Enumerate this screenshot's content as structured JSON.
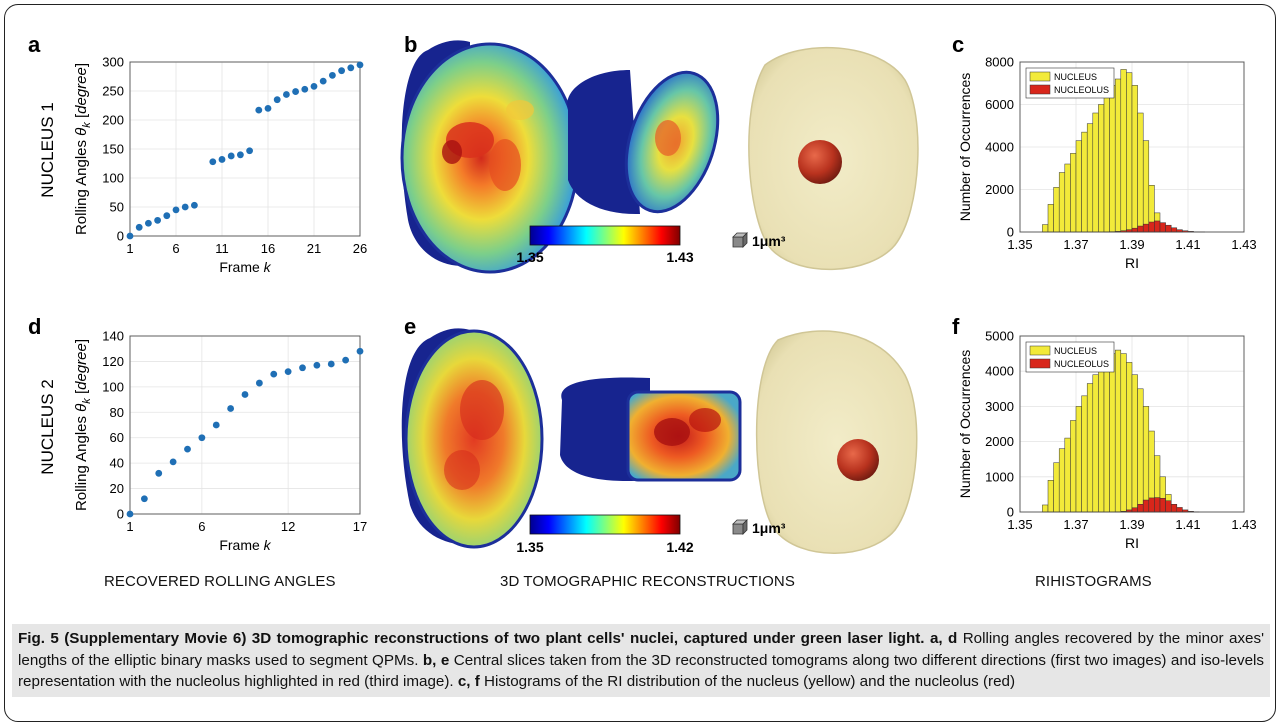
{
  "colors": {
    "nucleus_bar": "#f2ea3a",
    "nucleolus_bar": "#d8261b",
    "points": "#1f6fb5",
    "caption_bg": "#e6e6e6"
  },
  "panels": {
    "a": {
      "letter": "a",
      "row_label": "NUCLEUS 1"
    },
    "b": {
      "letter": "b",
      "cbar_min": "1.35",
      "cbar_max": "1.43",
      "scale_label": "1μm³"
    },
    "c": {
      "letter": "c"
    },
    "d": {
      "letter": "d",
      "row_label": "NUCLEUS 2"
    },
    "e": {
      "letter": "e",
      "cbar_min": "1.35",
      "cbar_max": "1.42",
      "scale_label": "1μm³"
    },
    "f": {
      "letter": "f"
    }
  },
  "section_labels": {
    "left": "RECOVERED ROLLING ANGLES",
    "middle": "3D TOMOGRAPHIC RECONSTRUCTIONS",
    "right": "RIHISTOGRAMS"
  },
  "caption": {
    "fig_label": "Fig. 5 (Supplementary Movie 6) 3D tomographic reconstructions of two plant cells' nuclei, captured under green laser light.",
    "ad_ref": "a, d",
    "ad_text": "Rolling angles recovered by the minor axes' lengths of the elliptic binary masks used to segment QPMs.",
    "be_ref": "b, e",
    "be_text": "Central slices taken from the 3D reconstructed tomograms along two different directions (first two images) and iso-levels representation with the nucleolus highlighted in red (third image).",
    "cf_ref": "c, f",
    "cf_text": "Histograms of the RI distribution of the nucleus (yellow) and the nucleolus (red)"
  },
  "chart_data": [
    {
      "id": "a",
      "type": "scatter",
      "xlabel_main": "Frame ",
      "xlabel_var": "k",
      "ylabel_main": "Rolling Angles ",
      "ylabel_sym": "θ",
      "ylabel_sub": "k",
      "ylabel_unit": "degree",
      "xlim": [
        1,
        26
      ],
      "ylim": [
        0,
        300
      ],
      "xticks": [
        1,
        6,
        11,
        16,
        21,
        26
      ],
      "yticks": [
        0,
        50,
        100,
        150,
        200,
        250,
        300
      ],
      "grid": true,
      "x": [
        1,
        2,
        3,
        4,
        5,
        6,
        7,
        8,
        10,
        11,
        12,
        13,
        14,
        15,
        16,
        17,
        18,
        19,
        20,
        21,
        22,
        23,
        24,
        25,
        26
      ],
      "y": [
        0,
        15,
        22,
        27,
        35,
        45,
        50,
        53,
        128,
        132,
        138,
        140,
        147,
        217,
        220,
        235,
        244,
        249,
        253,
        258,
        267,
        277,
        285,
        290,
        295
      ]
    },
    {
      "id": "d",
      "type": "scatter",
      "xlabel_main": "Frame ",
      "xlabel_var": "k",
      "ylabel_main": "Rolling Angles ",
      "ylabel_sym": "θ",
      "ylabel_sub": "k",
      "ylabel_unit": "degree",
      "xlim": [
        1,
        17
      ],
      "ylim": [
        0,
        140
      ],
      "xticks": [
        1,
        6,
        12,
        17
      ],
      "yticks": [
        0,
        20,
        40,
        60,
        80,
        100,
        120,
        140
      ],
      "grid": true,
      "x": [
        1,
        2,
        3,
        4,
        5,
        6,
        7,
        8,
        9,
        10,
        11,
        12,
        13,
        14,
        15,
        16,
        17
      ],
      "y": [
        0,
        12,
        32,
        41,
        51,
        60,
        70,
        83,
        94,
        103,
        110,
        112,
        115,
        117,
        118,
        121,
        128
      ]
    },
    {
      "id": "c",
      "type": "bar",
      "xlabel": "RI",
      "ylabel": "Number of Occurrences",
      "xlim": [
        1.35,
        1.43
      ],
      "ylim": [
        0,
        8000
      ],
      "xticks": [
        "1.35",
        "1.37",
        "1.39",
        "1.41",
        "1.43"
      ],
      "yticks": [
        0,
        2000,
        4000,
        6000,
        8000
      ],
      "legend": "top-left",
      "bin_start": 1.356,
      "bin_width": 0.002,
      "series": [
        {
          "name": "NUCLEUS",
          "values": [
            0,
            350,
            1300,
            2100,
            2800,
            3200,
            3700,
            4300,
            4700,
            5100,
            5600,
            6000,
            6500,
            6900,
            7200,
            7650,
            7500,
            6900,
            5600,
            4300,
            2200,
            900,
            300,
            100,
            30,
            10,
            0,
            0,
            0,
            0,
            0,
            0,
            0,
            0,
            0,
            0,
            0,
            0
          ]
        },
        {
          "name": "NUCLEOLUS",
          "values": [
            0,
            0,
            0,
            0,
            0,
            0,
            0,
            0,
            0,
            0,
            0,
            0,
            5,
            15,
            30,
            60,
            110,
            180,
            280,
            370,
            470,
            520,
            440,
            320,
            200,
            110,
            60,
            30,
            10,
            5,
            0,
            0,
            0,
            0,
            0,
            0,
            0,
            0
          ]
        }
      ]
    },
    {
      "id": "f",
      "type": "bar",
      "xlabel": "RI",
      "ylabel": "Number of Occurrences",
      "xlim": [
        1.35,
        1.43
      ],
      "ylim": [
        0,
        5000
      ],
      "xticks": [
        "1.35",
        "1.37",
        "1.39",
        "1.41",
        "1.43"
      ],
      "yticks": [
        0,
        1000,
        2000,
        3000,
        4000,
        5000
      ],
      "legend": "top-left",
      "bin_start": 1.356,
      "bin_width": 0.002,
      "series": [
        {
          "name": "NUCLEUS",
          "values": [
            0,
            200,
            900,
            1400,
            1800,
            2100,
            2600,
            3000,
            3300,
            3650,
            3900,
            4150,
            4350,
            4500,
            4600,
            4500,
            4250,
            3900,
            3500,
            3000,
            2300,
            1600,
            1000,
            500,
            200,
            60,
            20,
            0,
            0,
            0,
            0,
            0,
            0,
            0,
            0,
            0,
            0,
            0
          ]
        },
        {
          "name": "NUCLEOLUS",
          "values": [
            0,
            0,
            0,
            0,
            0,
            0,
            0,
            0,
            0,
            0,
            0,
            0,
            0,
            0,
            5,
            20,
            60,
            120,
            220,
            340,
            400,
            410,
            390,
            320,
            220,
            130,
            60,
            20,
            5,
            0,
            0,
            0,
            0,
            0,
            0,
            0,
            0,
            0
          ]
        }
      ]
    }
  ]
}
